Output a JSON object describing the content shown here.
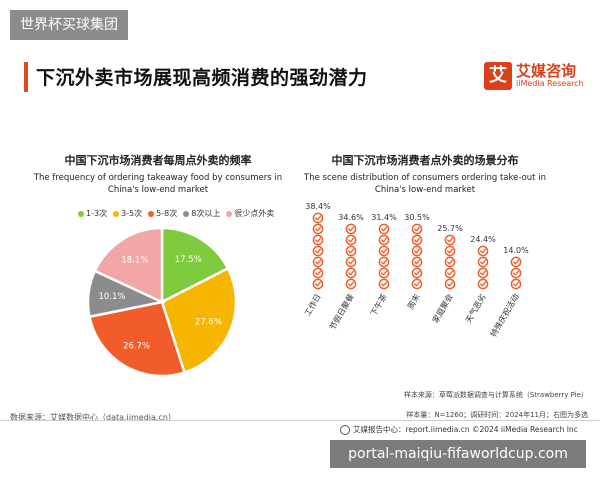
{
  "watermark": "世界杯买球集团",
  "headline": "下沉外卖市场展现高频消费的强劲潜力",
  "brand": {
    "logo_char": "艾",
    "name_cn": "艾媒咨询",
    "name_en": "iiMedia Research"
  },
  "chart_data": [
    {
      "type": "pie",
      "title": "中国下沉市场消费者每周点外卖的频率",
      "subtitle": "The frequency of ordering takeaway food by consumers in China's low-end market",
      "categories": [
        "1-3次",
        "3-5次",
        "5-8次",
        "8次以上",
        "很少点外卖"
      ],
      "values": [
        17.5,
        27.6,
        26.7,
        10.1,
        18.1
      ],
      "value_labels": [
        "17.5%",
        "27.6%",
        "26.7%",
        "10.1%",
        "18.1%"
      ],
      "colors": [
        "#7fcb3e",
        "#f6b500",
        "#f25c2a",
        "#8c8c8c",
        "#f2a6a6"
      ],
      "legend_position": "top"
    },
    {
      "type": "bar",
      "title": "中国下沉市场消费者点外卖的场景分布",
      "subtitle": "The scene distribution of consumers ordering take-out in China's low-end market",
      "categories": [
        "工作日",
        "节假日聚餐",
        "下午茶",
        "周末",
        "家庭聚会",
        "天气恶劣",
        "特殊庆祝活动"
      ],
      "values": [
        38.4,
        34.6,
        31.4,
        30.5,
        25.7,
        24.4,
        14.0
      ],
      "value_labels": [
        "38.4%",
        "34.6%",
        "31.4%",
        "30.5%",
        "25.7%",
        "24.4%",
        "14.0%"
      ],
      "color": "#f25c2a",
      "style": "stacked-check-icons"
    }
  ],
  "footer": {
    "source": "数据来源：艾媒数据中心（data.iimedia.cn）",
    "sample_source": "样本来源：草莓派数据调查与计算系统（Strawberry Pie）",
    "sample_info": "样本量：N=1260；调研时间：2024年11月；右图为多选",
    "report": "艾媒报告中心：report.iimedia.cn    ©2024  iiMedia Research  Inc"
  },
  "url_banner": "portal-maiqiu-fifaworldcup.com"
}
